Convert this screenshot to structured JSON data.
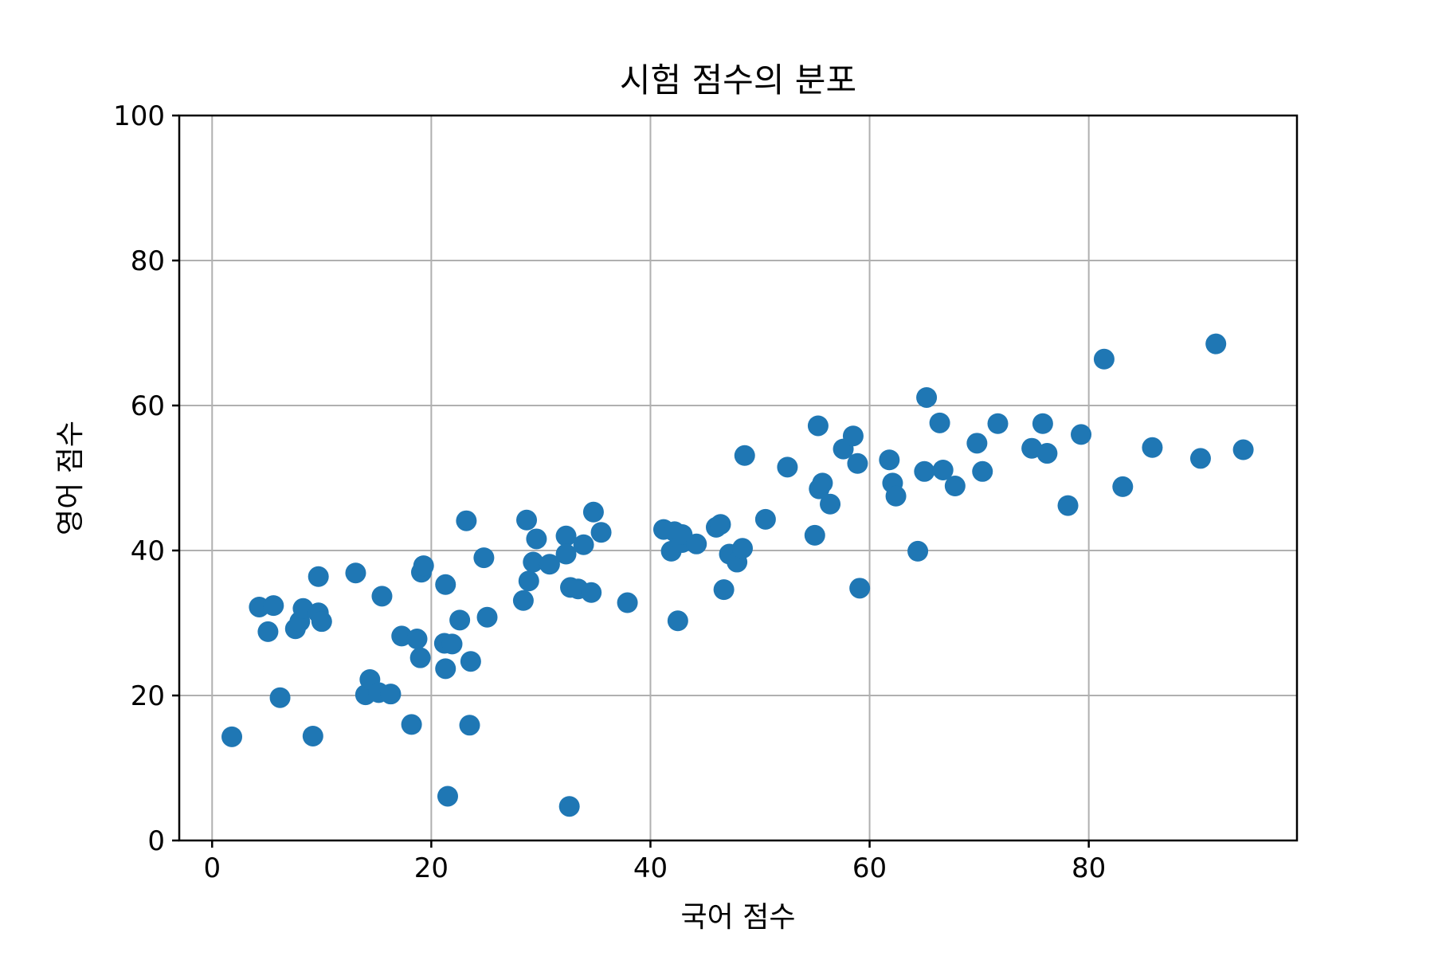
{
  "chart_data": {
    "type": "scatter",
    "title": "시험 점수의 분포",
    "xlabel": "국어 점수",
    "ylabel": "영어 점수",
    "xlim": [
      -3,
      99
    ],
    "ylim": [
      0,
      100
    ],
    "xticks": [
      0,
      20,
      40,
      60,
      80
    ],
    "yticks": [
      0,
      20,
      40,
      60,
      80,
      100
    ],
    "grid": true,
    "marker_color": "#1f77b4",
    "points": [
      [
        1.8,
        14.3
      ],
      [
        4.3,
        32.2
      ],
      [
        5.1,
        28.8
      ],
      [
        5.6,
        32.4
      ],
      [
        6.2,
        19.7
      ],
      [
        7.6,
        29.2
      ],
      [
        8.0,
        30.2
      ],
      [
        8.3,
        32.0
      ],
      [
        9.2,
        14.4
      ],
      [
        9.7,
        31.4
      ],
      [
        9.7,
        36.4
      ],
      [
        10.0,
        30.2
      ],
      [
        13.1,
        36.9
      ],
      [
        14.0,
        20.1
      ],
      [
        14.4,
        22.2
      ],
      [
        15.2,
        20.4
      ],
      [
        15.5,
        33.7
      ],
      [
        16.3,
        20.2
      ],
      [
        17.3,
        28.2
      ],
      [
        18.2,
        16.0
      ],
      [
        18.7,
        27.8
      ],
      [
        19.0,
        25.2
      ],
      [
        19.1,
        37.0
      ],
      [
        19.3,
        37.9
      ],
      [
        21.2,
        27.2
      ],
      [
        21.3,
        23.7
      ],
      [
        21.3,
        35.3
      ],
      [
        21.5,
        6.1
      ],
      [
        21.9,
        27.1
      ],
      [
        22.6,
        30.4
      ],
      [
        23.2,
        44.1
      ],
      [
        23.5,
        15.9
      ],
      [
        23.6,
        24.7
      ],
      [
        24.8,
        39.0
      ],
      [
        25.1,
        30.8
      ],
      [
        28.4,
        33.1
      ],
      [
        28.7,
        44.2
      ],
      [
        28.9,
        35.8
      ],
      [
        29.3,
        38.4
      ],
      [
        29.6,
        41.6
      ],
      [
        30.8,
        38.1
      ],
      [
        32.3,
        42.0
      ],
      [
        32.3,
        39.5
      ],
      [
        32.6,
        4.7
      ],
      [
        32.7,
        34.9
      ],
      [
        33.4,
        34.7
      ],
      [
        33.9,
        40.8
      ],
      [
        34.6,
        34.2
      ],
      [
        34.8,
        45.3
      ],
      [
        35.5,
        42.5
      ],
      [
        37.9,
        32.8
      ],
      [
        41.2,
        42.9
      ],
      [
        41.9,
        39.9
      ],
      [
        42.2,
        42.6
      ],
      [
        42.5,
        30.3
      ],
      [
        42.9,
        41.1
      ],
      [
        42.9,
        42.2
      ],
      [
        44.2,
        40.9
      ],
      [
        46.0,
        43.2
      ],
      [
        46.4,
        43.6
      ],
      [
        46.7,
        34.6
      ],
      [
        47.2,
        39.5
      ],
      [
        47.9,
        38.4
      ],
      [
        48.4,
        40.3
      ],
      [
        48.6,
        53.1
      ],
      [
        50.5,
        44.3
      ],
      [
        52.5,
        51.5
      ],
      [
        55.0,
        42.1
      ],
      [
        55.3,
        57.2
      ],
      [
        55.4,
        48.5
      ],
      [
        55.7,
        49.3
      ],
      [
        56.4,
        46.4
      ],
      [
        57.6,
        54.0
      ],
      [
        58.5,
        55.8
      ],
      [
        58.9,
        52.0
      ],
      [
        59.1,
        34.8
      ],
      [
        61.8,
        52.5
      ],
      [
        62.1,
        49.3
      ],
      [
        62.4,
        47.5
      ],
      [
        64.4,
        39.9
      ],
      [
        65.0,
        50.9
      ],
      [
        65.2,
        61.1
      ],
      [
        66.4,
        57.6
      ],
      [
        66.7,
        51.1
      ],
      [
        67.8,
        48.9
      ],
      [
        69.8,
        54.8
      ],
      [
        70.3,
        50.9
      ],
      [
        71.7,
        57.5
      ],
      [
        74.8,
        54.1
      ],
      [
        75.8,
        57.5
      ],
      [
        76.2,
        53.4
      ],
      [
        78.1,
        46.2
      ],
      [
        79.3,
        56.0
      ],
      [
        81.4,
        66.4
      ],
      [
        83.1,
        48.8
      ],
      [
        85.8,
        54.2
      ],
      [
        90.2,
        52.7
      ],
      [
        91.6,
        68.5
      ],
      [
        94.1,
        53.9
      ]
    ]
  }
}
